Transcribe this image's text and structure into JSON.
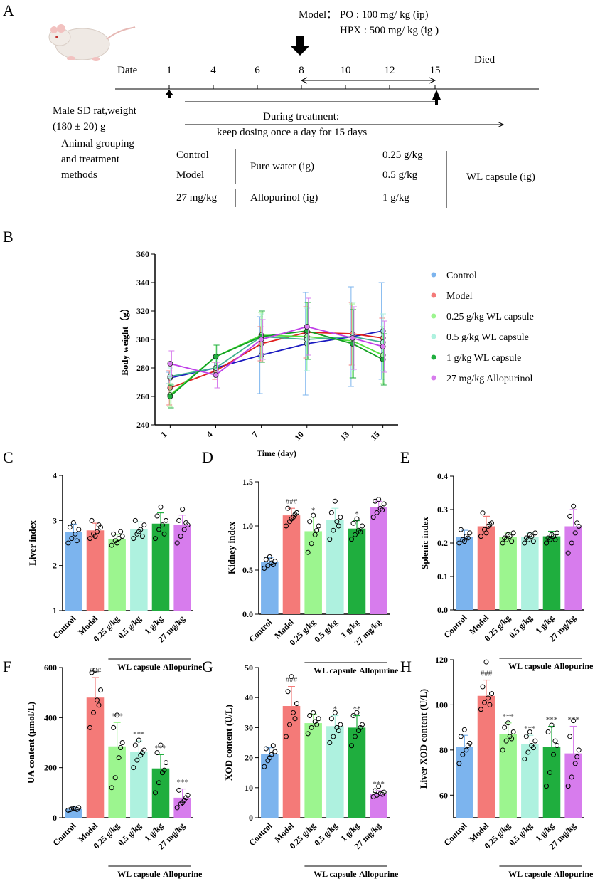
{
  "colors": {
    "control": "#7cb4ee",
    "model": "#f47a78",
    "wl025": "#9cf58f",
    "wl05": "#aef1df",
    "wl1": "#1fae3e",
    "allo": "#d77ced",
    "line_control": "#1a1ac0",
    "line_model": "#e02020",
    "line_wl025": "#54e040",
    "line_wl05": "#40b090",
    "line_wl1": "#10a020",
    "line_allo": "#c040e8"
  },
  "panelA": {
    "letter": "A",
    "model_line1": "Model：  PO   : 100 mg/ kg (ip)",
    "model_line2": "HPX   : 500 mg/ kg (ig )",
    "date_label": "Date",
    "ticks": [
      "1",
      "4",
      "6",
      "8",
      "10",
      "12",
      "15"
    ],
    "died": "Died",
    "rat_line1": "Male  SD rat,weight",
    "rat_line2": "(180 ±    20) g",
    "treatment_line1": "During treatment:",
    "treatment_line2": "keep dosing once a day for 15 days",
    "grouping_line1": "Animal grouping",
    "grouping_line2": "and treatment",
    "grouping_line3": "methods",
    "group_control": "Control",
    "group_model": "Model",
    "group_allo_dose": "27 mg/kg",
    "pure_water": "Pure water (ig)",
    "allopurinol": "Allopurinol (ig)",
    "dose1": "0.25 g/kg",
    "dose2": "0.5 g/kg",
    "dose3": "1 g/kg",
    "wl_capsule": "WL capsule (ig)"
  },
  "panelB_letter": "B",
  "panels": {
    "C": "C",
    "D": "D",
    "E": "E",
    "F": "F",
    "G": "G",
    "H": "H"
  },
  "bar_categories": [
    "Control",
    "Model",
    "0.25 g/kg",
    "0.5 g/kg",
    "1 g/kg",
    "27 mg/kg"
  ],
  "bracket_labels": {
    "wl": "WL capsule",
    "allo": "Allopurine"
  },
  "chart_data": [
    {
      "id": "B",
      "type": "line",
      "title": "",
      "xlabel": "Time (day)",
      "ylabel": "Body weight（g）",
      "x": [
        1,
        4,
        7,
        10,
        13,
        15
      ],
      "xticks": [
        "1",
        "4",
        "7",
        "10",
        "13",
        "15"
      ],
      "ylim": [
        240,
        360
      ],
      "yticks": [
        240,
        260,
        280,
        300,
        320,
        340,
        360
      ],
      "series": [
        {
          "name": "Control",
          "color_key": "control",
          "line_key": "line_control",
          "values": [
            273,
            280,
            289,
            297,
            302,
            306
          ],
          "err": [
            4,
            4,
            27,
            36,
            35,
            34
          ]
        },
        {
          "name": "Model",
          "color_key": "model",
          "line_key": "line_model",
          "values": [
            266,
            278,
            297,
            305,
            304,
            301
          ],
          "err": [
            12,
            6,
            12,
            18,
            22,
            14
          ]
        },
        {
          "name": "0.25 g/kg WL capsule",
          "color_key": "wl025",
          "line_key": "line_wl025",
          "values": [
            261,
            288,
            303,
            302,
            299,
            289
          ],
          "err": [
            8,
            8,
            16,
            24,
            26,
            20
          ]
        },
        {
          "name": "0.5 g/kg WL capsule",
          "color_key": "wl05",
          "line_key": "line_wl05",
          "values": [
            274,
            280,
            302,
            300,
            302,
            298
          ],
          "err": [
            6,
            6,
            16,
            22,
            24,
            20
          ]
        },
        {
          "name": "1 g/kg WL capsule",
          "color_key": "wl1",
          "line_key": "line_wl1",
          "values": [
            260,
            288,
            302,
            306,
            297,
            286
          ],
          "err": [
            8,
            8,
            18,
            20,
            24,
            18
          ]
        },
        {
          "name": "27 mg/kg Allopurinol",
          "color_key": "allo",
          "line_key": "line_allo",
          "values": [
            283,
            275,
            300,
            309,
            301,
            295
          ],
          "err": [
            9,
            9,
            14,
            20,
            22,
            18
          ]
        }
      ]
    },
    {
      "id": "C",
      "type": "bar",
      "ylabel": "Liver index",
      "ylim": [
        1,
        4
      ],
      "yticks": [
        "1",
        "2",
        "3",
        "4"
      ],
      "yticks_num": [
        1,
        2,
        3,
        4
      ],
      "values": [
        2.75,
        2.78,
        2.58,
        2.8,
        2.93,
        2.9
      ],
      "err": [
        0.17,
        0.16,
        0.11,
        0.17,
        0.24,
        0.22
      ],
      "annot": [
        "",
        "",
        "",
        "",
        "",
        ""
      ],
      "points": [
        [
          2.5,
          2.6,
          2.7,
          2.8,
          2.85,
          2.95,
          2.55
        ],
        [
          2.6,
          2.7,
          2.75,
          2.85,
          3.0,
          2.65,
          2.9
        ],
        [
          2.45,
          2.55,
          2.6,
          2.65,
          2.7,
          2.5,
          2.75
        ],
        [
          2.6,
          2.7,
          2.8,
          2.9,
          3.0,
          2.75,
          2.65
        ],
        [
          2.6,
          2.8,
          2.9,
          3.0,
          3.1,
          3.3,
          2.7
        ],
        [
          2.5,
          2.65,
          2.8,
          2.9,
          3.0,
          3.25,
          2.95
        ]
      ]
    },
    {
      "id": "D",
      "type": "bar",
      "ylabel": "Kidney index",
      "ylim": [
        0,
        1.5
      ],
      "yticks": [
        "0.0",
        "0.5",
        "1.0",
        "1.5"
      ],
      "yticks_num": [
        0,
        0.5,
        1.0,
        1.5
      ],
      "values": [
        0.59,
        1.12,
        0.94,
        1.07,
        0.97,
        1.21
      ],
      "err": [
        0.05,
        0.08,
        0.16,
        0.13,
        0.09,
        0.07
      ],
      "annot": [
        "",
        "###",
        "*",
        "",
        "*",
        ""
      ],
      "points": [
        [
          0.52,
          0.55,
          0.58,
          0.6,
          0.62,
          0.65,
          0.56
        ],
        [
          1.0,
          1.05,
          1.1,
          1.15,
          1.2,
          1.08,
          1.13
        ],
        [
          0.7,
          0.8,
          0.9,
          1.0,
          1.05,
          1.12,
          0.95
        ],
        [
          0.85,
          0.95,
          1.05,
          1.1,
          1.15,
          1.28,
          1.0
        ],
        [
          0.85,
          0.9,
          0.95,
          1.0,
          1.03,
          1.08,
          0.93
        ],
        [
          1.1,
          1.15,
          1.2,
          1.25,
          1.28,
          1.3,
          1.18
        ]
      ]
    },
    {
      "id": "E",
      "type": "bar",
      "ylabel": "Splenic index",
      "ylim": [
        0,
        0.4
      ],
      "yticks": [
        "0.0",
        "0.1",
        "0.2",
        "0.3",
        "0.4"
      ],
      "yticks_num": [
        0,
        0.1,
        0.2,
        0.3,
        0.4
      ],
      "values": [
        0.218,
        0.25,
        0.218,
        0.218,
        0.22,
        0.25
      ],
      "err": [
        0.02,
        0.03,
        0.012,
        0.012,
        0.015,
        0.05
      ],
      "annot": [
        "",
        "",
        "",
        "",
        "",
        ""
      ],
      "points": [
        [
          0.2,
          0.21,
          0.22,
          0.23,
          0.24,
          0.205,
          0.215
        ],
        [
          0.22,
          0.24,
          0.25,
          0.26,
          0.29,
          0.23,
          0.255
        ],
        [
          0.2,
          0.21,
          0.22,
          0.23,
          0.215,
          0.225,
          0.205
        ],
        [
          0.2,
          0.21,
          0.22,
          0.23,
          0.215,
          0.225,
          0.205
        ],
        [
          0.2,
          0.21,
          0.22,
          0.23,
          0.215,
          0.225,
          0.21
        ],
        [
          0.17,
          0.2,
          0.23,
          0.25,
          0.28,
          0.31,
          0.26
        ]
      ]
    },
    {
      "id": "F",
      "type": "bar",
      "ylabel": "UA content (μmol/L)",
      "ylim": [
        0,
        600
      ],
      "yticks": [
        "0",
        "200",
        "400",
        "600"
      ],
      "yticks_num": [
        0,
        200,
        400,
        600
      ],
      "values": [
        35,
        480,
        285,
        262,
        197,
        80
      ],
      "err": [
        7,
        80,
        95,
        45,
        55,
        35
      ],
      "annot": [
        "",
        "###",
        "***",
        "***",
        "***",
        "***"
      ],
      "points": [
        [
          30,
          35,
          38,
          40,
          32,
          36,
          33
        ],
        [
          360,
          420,
          470,
          510,
          580,
          590,
          450
        ],
        [
          120,
          160,
          240,
          300,
          360,
          410,
          280
        ],
        [
          200,
          230,
          250,
          270,
          290,
          310,
          260
        ],
        [
          100,
          140,
          180,
          220,
          260,
          290,
          190
        ],
        [
          40,
          55,
          70,
          90,
          110,
          60,
          80
        ]
      ]
    },
    {
      "id": "G",
      "type": "bar",
      "ylabel": "XOD content (U/L)",
      "ylim": [
        0,
        50
      ],
      "yticks": [
        "0",
        "10",
        "20",
        "30",
        "40",
        "50"
      ],
      "yticks_num": [
        0,
        10,
        20,
        30,
        40,
        50
      ],
      "values": [
        21.3,
        37.2,
        31.5,
        30.5,
        30.0,
        8.0
      ],
      "err": [
        2,
        6.5,
        3,
        3.5,
        4,
        1
      ],
      "annot": [
        "",
        "###",
        "",
        "*",
        "**",
        "***"
      ],
      "points": [
        [
          17,
          19,
          21,
          22,
          23,
          20,
          24
        ],
        [
          27,
          31,
          35,
          38,
          42,
          47,
          33
        ],
        [
          28,
          30,
          32,
          33,
          34,
          35,
          31
        ],
        [
          25,
          27,
          30,
          31,
          33,
          35,
          29
        ],
        [
          24,
          27,
          29,
          31,
          34,
          35,
          30
        ],
        [
          7,
          7.5,
          8,
          8.5,
          9,
          10.5,
          7.8
        ]
      ]
    },
    {
      "id": "H",
      "type": "bar",
      "ylabel": "Liver XOD  content (U/L)",
      "ylim": [
        50,
        120
      ],
      "yticks": [
        "60",
        "80",
        "100",
        "120"
      ],
      "yticks_num": [
        60,
        80,
        100,
        120
      ],
      "values": [
        81.5,
        104,
        87,
        82.5,
        81.5,
        78.5
      ],
      "err": [
        5,
        7,
        5,
        4,
        9,
        12
      ],
      "annot": [
        "",
        "###",
        "***",
        "***",
        "***",
        "***"
      ],
      "points": [
        [
          74,
          78,
          80,
          83,
          86,
          89,
          82
        ],
        [
          98,
          101,
          103,
          105,
          108,
          119,
          100
        ],
        [
          80,
          84,
          86,
          88,
          90,
          92,
          85
        ],
        [
          76,
          79,
          82,
          84,
          86,
          88,
          81
        ],
        [
          64,
          70,
          78,
          82,
          88,
          91,
          84
        ],
        [
          64,
          68,
          74,
          80,
          86,
          93,
          77
        ]
      ]
    }
  ]
}
